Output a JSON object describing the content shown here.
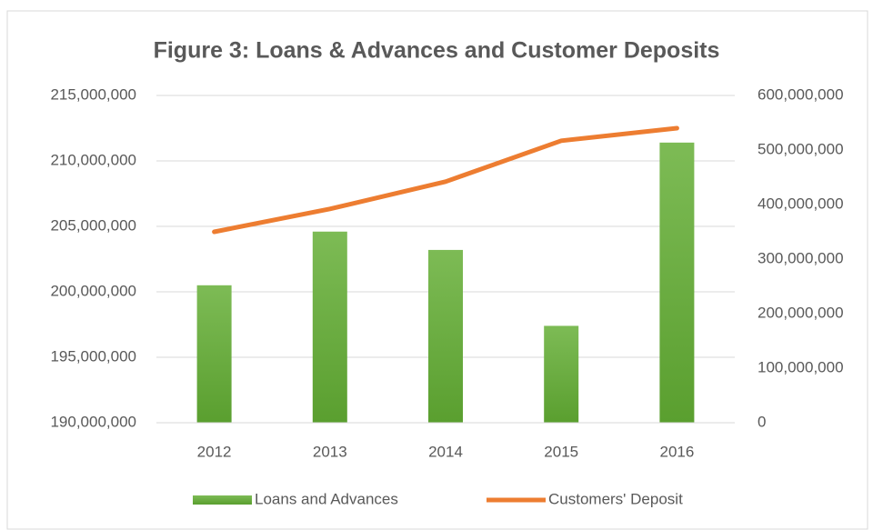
{
  "chart_data": {
    "type": "bar",
    "title": "Figure 3: Loans & Advances and Customer Deposits",
    "categories": [
      "2012",
      "2013",
      "2014",
      "2015",
      "2016"
    ],
    "series": [
      {
        "name": "Loans and Advances",
        "type": "bar",
        "color": "#6aaa3d",
        "values": [
          200500000,
          204600000,
          203200000,
          197400000,
          211400000
        ]
      },
      {
        "name": "Customers' Deposit",
        "type": "line",
        "axis": "y2",
        "color": "#ed7d31",
        "values": [
          350000000,
          392000000,
          442000000,
          517000000,
          540000000
        ]
      }
    ],
    "ylim": [
      190000000,
      215000000
    ],
    "yticks": [
      {
        "value": 190000000,
        "label": "190,000,000"
      },
      {
        "value": 195000000,
        "label": "195,000,000"
      },
      {
        "value": 200000000,
        "label": "200,000,000"
      },
      {
        "value": 205000000,
        "label": "205,000,000"
      },
      {
        "value": 210000000,
        "label": "210,000,000"
      },
      {
        "value": 215000000,
        "label": "215,000,000"
      }
    ],
    "y2lim": [
      0,
      600000000
    ],
    "y2ticks": [
      0,
      {
        "value": 100000000,
        "label": "100,000,000"
      },
      {
        "value": 200000000,
        "label": "200,000,000"
      },
      {
        "value": 300000000,
        "label": "300,000,000"
      },
      {
        "value": 400000000,
        "label": "400,000,000"
      },
      {
        "value": 500000000,
        "label": "500,000,000"
      },
      {
        "value": 600000000,
        "label": "600,000,000"
      }
    ],
    "grid": true,
    "legend": "bottom"
  }
}
